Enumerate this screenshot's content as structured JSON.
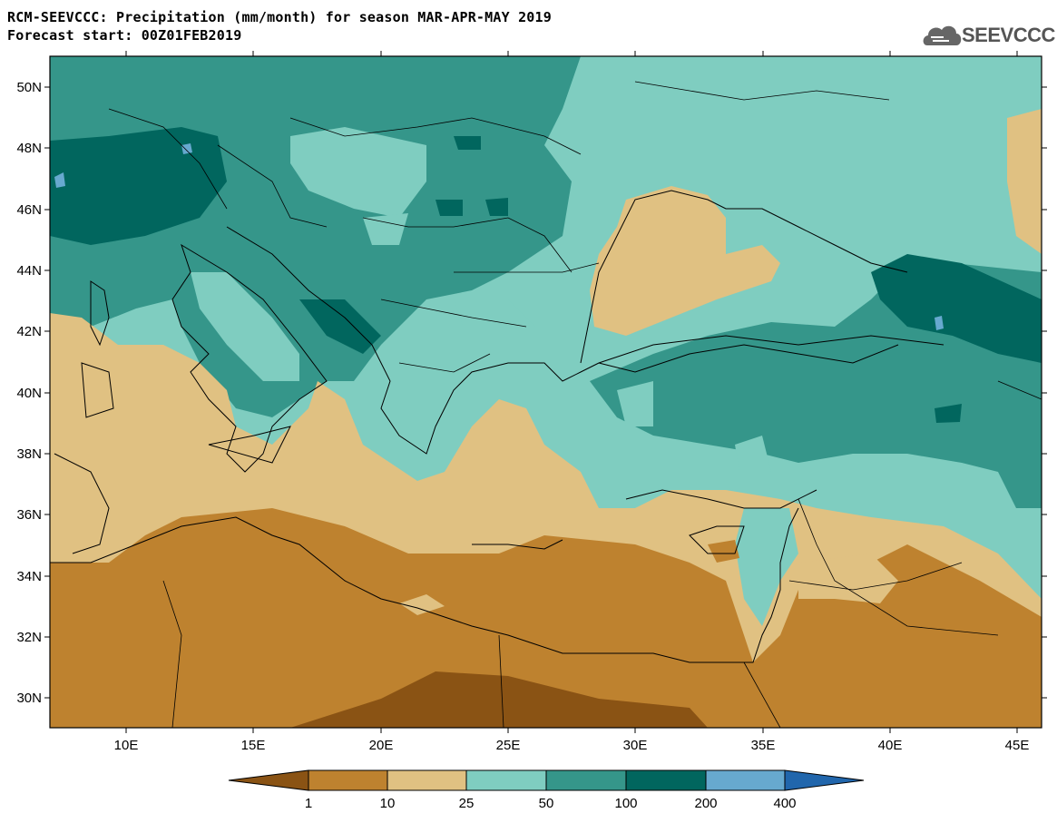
{
  "header": {
    "title_line1": "RCM-SEEVCCC: Precipitation (mm/month) for season MAR-APR-MAY 2019",
    "title_line2": "Forecast start: 00Z01FEB2019"
  },
  "logo": {
    "text": "SEEVCCC",
    "icon": "cloud-icon"
  },
  "axes": {
    "lat_labels": [
      "50N",
      "48N",
      "46N",
      "44N",
      "42N",
      "40N",
      "38N",
      "36N",
      "34N",
      "32N",
      "30N"
    ],
    "lon_labels": [
      "10E",
      "15E",
      "20E",
      "25E",
      "30E",
      "35E",
      "40E",
      "45E"
    ]
  },
  "colorbar": {
    "labels": [
      "1",
      "10",
      "25",
      "50",
      "100",
      "200",
      "400"
    ],
    "colors": [
      "#8a5314",
      "#be822f",
      "#e0c182",
      "#7fcdc0",
      "#35968a",
      "#01665e",
      "#67a9cf",
      "#2166ac"
    ]
  }
}
